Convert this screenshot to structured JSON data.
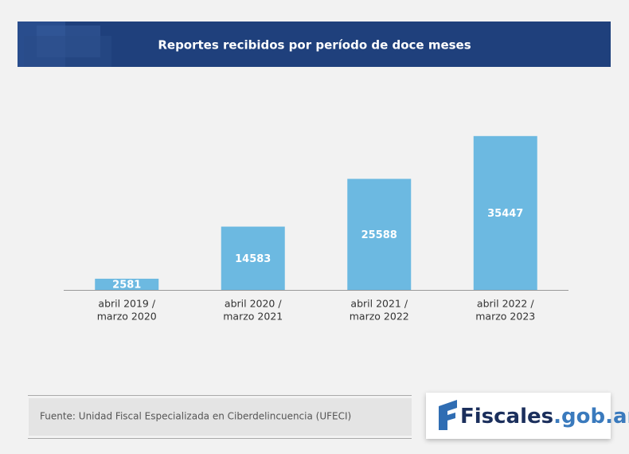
{
  "chart_data": {
    "type": "bar",
    "title": "Reportes recibidos por período de doce meses",
    "categories": [
      [
        "abril 2019 /",
        "marzo 2020"
      ],
      [
        "abril 2020 /",
        "marzo 2021"
      ],
      [
        "abril 2021 /",
        "marzo 2022"
      ],
      [
        "abril 2022 /",
        "marzo 2023"
      ]
    ],
    "values": [
      2581,
      14583,
      25588,
      35447
    ],
    "color": "#6cb9e1",
    "ylim": [
      0,
      40000
    ]
  },
  "footer": {
    "source": "Fuente: Unidad Fiscal Especializada en Ciberdelincuencia (UFECI)",
    "logo": {
      "name": "Fiscales",
      "domain": ".gob.ar"
    }
  }
}
